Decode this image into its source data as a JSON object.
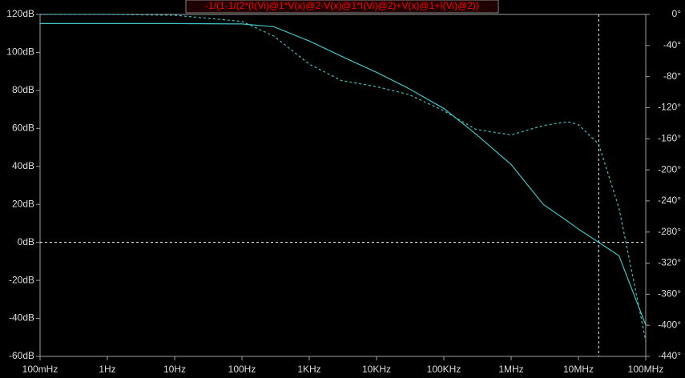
{
  "chart_data": {
    "type": "line",
    "title": "-1/(1-1/(2*(I(Vi)@1*V(x)@2-V(x)@1*I(Vi)@2)+V(x)@1+I(Vi)@2))",
    "x": [
      0.1,
      1,
      10,
      100,
      300,
      1000,
      3000,
      10000,
      30000,
      100000,
      300000,
      1000000,
      3000000,
      7000000,
      10000000,
      20000000,
      40000000,
      100000000
    ],
    "xlog": true,
    "xlim": [
      0.1,
      100000000
    ],
    "xticks": [
      {
        "value": 0.1,
        "label": "100mHz"
      },
      {
        "value": 1,
        "label": "1Hz"
      },
      {
        "value": 10,
        "label": "10Hz"
      },
      {
        "value": 100,
        "label": "100Hz"
      },
      {
        "value": 1000,
        "label": "1KHz"
      },
      {
        "value": 10000,
        "label": "10KHz"
      },
      {
        "value": 100000,
        "label": "100KHz"
      },
      {
        "value": 1000000,
        "label": "1MHz"
      },
      {
        "value": 10000000,
        "label": "10MHz"
      },
      {
        "value": 100000000,
        "label": "100MHz"
      }
    ],
    "ylim": [
      -60,
      120
    ],
    "yticks": [
      {
        "value": 120,
        "label": "120dB"
      },
      {
        "value": 100,
        "label": "100dB"
      },
      {
        "value": 80,
        "label": "80dB"
      },
      {
        "value": 60,
        "label": "60dB"
      },
      {
        "value": 40,
        "label": "40dB"
      },
      {
        "value": 20,
        "label": "20dB"
      },
      {
        "value": 0,
        "label": "0dB"
      },
      {
        "value": -20,
        "label": "-20dB"
      },
      {
        "value": -40,
        "label": "-40dB"
      },
      {
        "value": -60,
        "label": "-60dB"
      }
    ],
    "y2lim": [
      -440,
      0
    ],
    "y2ticks": [
      {
        "value": 0,
        "label": "0°"
      },
      {
        "value": -40,
        "label": "-40°"
      },
      {
        "value": -80,
        "label": "-80°"
      },
      {
        "value": -120,
        "label": "-120°"
      },
      {
        "value": -160,
        "label": "-160°"
      },
      {
        "value": -200,
        "label": "-200°"
      },
      {
        "value": -240,
        "label": "-240°"
      },
      {
        "value": -280,
        "label": "-280°"
      },
      {
        "value": -320,
        "label": "-320°"
      },
      {
        "value": -360,
        "label": "-360°"
      },
      {
        "value": -400,
        "label": "-400°"
      },
      {
        "value": -440,
        "label": "-440°"
      }
    ],
    "series": [
      {
        "color": "#3fc4c4",
        "style": "solid",
        "axis": "y",
        "values": [
          115.2,
          115.2,
          115.2,
          115,
          113.5,
          106,
          98,
          89.5,
          81,
          70.5,
          57,
          41,
          20,
          11,
          7,
          0,
          -7,
          -43.5
        ]
      },
      {
        "color": "#3fc4c4",
        "style": "dashed",
        "axis": "y2",
        "values": [
          0,
          0,
          -1,
          -9,
          -28,
          -64,
          -85,
          -93,
          -103,
          -124,
          -148,
          -155,
          -143,
          -138,
          -142,
          -167,
          -249,
          -420
        ]
      }
    ],
    "cursor": {
      "x": 20000000,
      "y": 0
    },
    "background": "#000000",
    "axis_color": "#a0a0a0",
    "title_color": "#ff0000"
  }
}
